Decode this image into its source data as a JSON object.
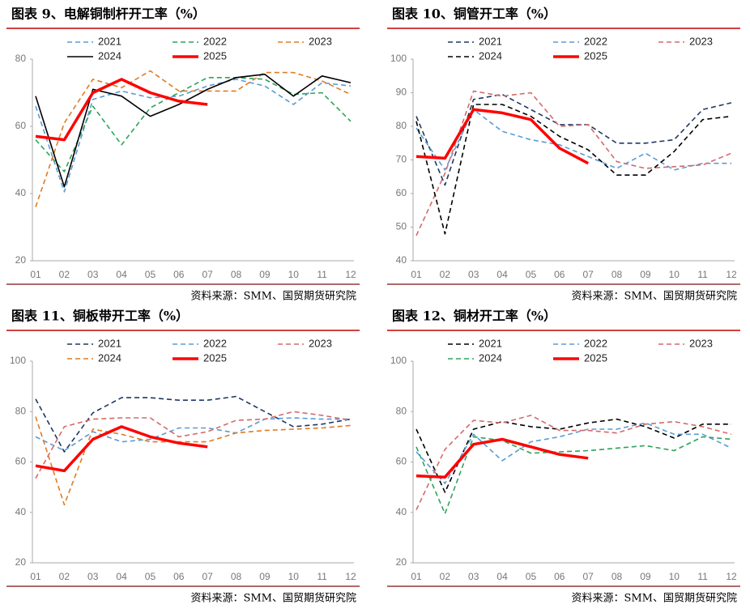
{
  "chart_data": [
    {
      "type": "line",
      "title": "图表 9、电解铜制杆开工率（%）",
      "source": "资料来源：SMM、国贸期货研究院",
      "categories": [
        "01",
        "02",
        "03",
        "04",
        "05",
        "06",
        "07",
        "08",
        "09",
        "10",
        "11",
        "12"
      ],
      "ylim": [
        20,
        80
      ],
      "yticks": [
        20,
        40,
        60,
        80
      ],
      "series": [
        {
          "name": "2021",
          "color": "#5b9bd5",
          "dash": true,
          "values": [
            66,
            40.5,
            68,
            70.5,
            68.5,
            69,
            72,
            74,
            72,
            66.5,
            73,
            72
          ]
        },
        {
          "name": "2022",
          "color": "#2ca35a",
          "dash": true,
          "values": [
            56,
            46.5,
            66,
            54.5,
            65.5,
            70,
            74.5,
            74.5,
            74,
            69.5,
            70,
            61.5
          ]
        },
        {
          "name": "2023",
          "color": "#e07b24",
          "dash": true,
          "values": [
            36,
            61,
            74,
            71.5,
            76.5,
            70.5,
            70.5,
            70.5,
            76,
            76,
            73.5,
            69.5
          ]
        },
        {
          "name": "2024",
          "color": "#000000",
          "dash": false,
          "values": [
            69,
            42,
            71,
            69,
            63,
            66.5,
            71,
            74.5,
            75.5,
            69,
            75,
            73
          ]
        },
        {
          "name": "2025",
          "color": "#ff0000",
          "dash": false,
          "bold": true,
          "values": [
            57,
            56,
            70,
            74,
            70,
            67.5,
            66.5,
            null,
            null,
            null,
            null,
            null
          ]
        }
      ]
    },
    {
      "type": "line",
      "title": "图表 10、铜管开工率（%）",
      "source": "资料来源：SMM、国贸期货研究院",
      "categories": [
        "01",
        "02",
        "03",
        "04",
        "05",
        "06",
        "07",
        "08",
        "09",
        "10",
        "11",
        "12"
      ],
      "ylim": [
        40,
        100
      ],
      "yticks": [
        40,
        50,
        60,
        70,
        80,
        90,
        100
      ],
      "series": [
        {
          "name": "2021",
          "color": "#1f3864",
          "dash": true,
          "values": [
            83,
            62.5,
            88,
            89.5,
            85,
            80.5,
            80.5,
            75,
            75,
            76,
            85,
            87
          ]
        },
        {
          "name": "2022",
          "color": "#5b9bd5",
          "dash": true,
          "values": [
            79.5,
            67,
            85,
            78.5,
            76,
            74.5,
            71,
            67.5,
            72,
            67,
            69,
            69
          ]
        },
        {
          "name": "2023",
          "color": "#d46a6a",
          "dash": true,
          "values": [
            47.5,
            66,
            90.5,
            89,
            90,
            80,
            80.5,
            69.5,
            67.5,
            68,
            68.5,
            72
          ]
        },
        {
          "name": "2024",
          "color": "#000000",
          "dash": true,
          "values": [
            81.5,
            48,
            86.5,
            86.5,
            83,
            77,
            73,
            65.5,
            65.5,
            72.5,
            82,
            83
          ]
        },
        {
          "name": "2025",
          "color": "#ff0000",
          "dash": false,
          "bold": true,
          "values": [
            71,
            70.5,
            85,
            84,
            82,
            73.5,
            69,
            null,
            null,
            null,
            null,
            null
          ]
        }
      ]
    },
    {
      "type": "line",
      "title": "图表 11、铜板带开工率（%）",
      "source": "资料来源：SMM、国贸期货研究院",
      "categories": [
        "01",
        "02",
        "03",
        "04",
        "05",
        "06",
        "07",
        "08",
        "09",
        "10",
        "11",
        "12"
      ],
      "ylim": [
        20,
        100
      ],
      "yticks": [
        20,
        40,
        60,
        80,
        100
      ],
      "series": [
        {
          "name": "2021",
          "color": "#1f3864",
          "dash": true,
          "values": [
            85,
            64,
            79.5,
            85.5,
            85.5,
            84.5,
            84.5,
            86,
            80,
            74,
            75,
            77
          ]
        },
        {
          "name": "2022",
          "color": "#5b9bd5",
          "dash": true,
          "values": [
            70,
            64.5,
            72,
            68,
            69,
            73.5,
            73.5,
            71.5,
            77,
            77.5,
            77,
            77
          ]
        },
        {
          "name": "2023",
          "color": "#d46a6a",
          "dash": true,
          "values": [
            53.5,
            74,
            77,
            77.5,
            77.5,
            70,
            72,
            76.5,
            77,
            80,
            78.5,
            76.5
          ]
        },
        {
          "name": "2024",
          "color": "#e07b24",
          "dash": true,
          "values": [
            78,
            43,
            73,
            71,
            68,
            68,
            68,
            71.5,
            72.5,
            73,
            73.5,
            74.5
          ]
        },
        {
          "name": "2025",
          "color": "#ff0000",
          "dash": false,
          "bold": true,
          "values": [
            58.5,
            56.5,
            69,
            74,
            70,
            67.5,
            66,
            null,
            null,
            null,
            null,
            null
          ]
        }
      ]
    },
    {
      "type": "line",
      "title": "图表 12、铜材开工率（%）",
      "source": "资料来源：SMM、国贸期货研究院",
      "categories": [
        "01",
        "02",
        "03",
        "04",
        "05",
        "06",
        "07",
        "08",
        "09",
        "10",
        "11",
        "12"
      ],
      "ylim": [
        20,
        100
      ],
      "yticks": [
        20,
        40,
        60,
        80,
        100
      ],
      "series": [
        {
          "name": "2021",
          "color": "#000000",
          "dash": true,
          "values": [
            73,
            48,
            73,
            76,
            74,
            73,
            75.5,
            77,
            74,
            69.5,
            75,
            75
          ]
        },
        {
          "name": "2022",
          "color": "#5b9bd5",
          "dash": true,
          "values": [
            64,
            51.5,
            71,
            60.5,
            68,
            70,
            73,
            73,
            75.5,
            71,
            71,
            65.5
          ]
        },
        {
          "name": "2023",
          "color": "#d46a6a",
          "dash": true,
          "values": [
            41,
            65,
            76.5,
            75.5,
            78.5,
            72.5,
            72.5,
            71.5,
            75,
            76,
            74,
            71
          ]
        },
        {
          "name": "2024",
          "color": "#2ca35a",
          "dash": true,
          "values": [
            66,
            39.5,
            70,
            68.5,
            63.5,
            64,
            64.5,
            65.5,
            66.5,
            64.5,
            70,
            69
          ]
        },
        {
          "name": "2025",
          "color": "#ff0000",
          "dash": false,
          "bold": true,
          "values": [
            54.5,
            54,
            67,
            69,
            66,
            63,
            61.5,
            null,
            null,
            null,
            null,
            null
          ]
        }
      ]
    }
  ]
}
